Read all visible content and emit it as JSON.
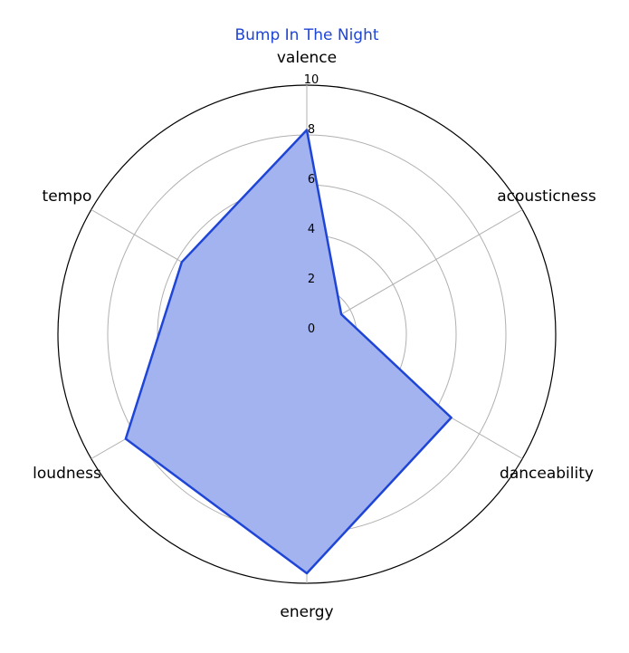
{
  "chart_data": {
    "type": "radar",
    "title": "Bump In The Night",
    "axes": [
      "valence",
      "acousticness",
      "danceability",
      "energy",
      "loudness",
      "tempo"
    ],
    "series": [
      {
        "values": [
          8.2,
          1.6,
          6.7,
          9.6,
          8.4,
          5.8
        ]
      }
    ],
    "rlim": [
      0,
      10
    ],
    "rticks": [
      0,
      2,
      4,
      6,
      8,
      10
    ],
    "grid": true,
    "colors": {
      "line": "#1f45d6",
      "fill": "#a2b3f0"
    }
  }
}
